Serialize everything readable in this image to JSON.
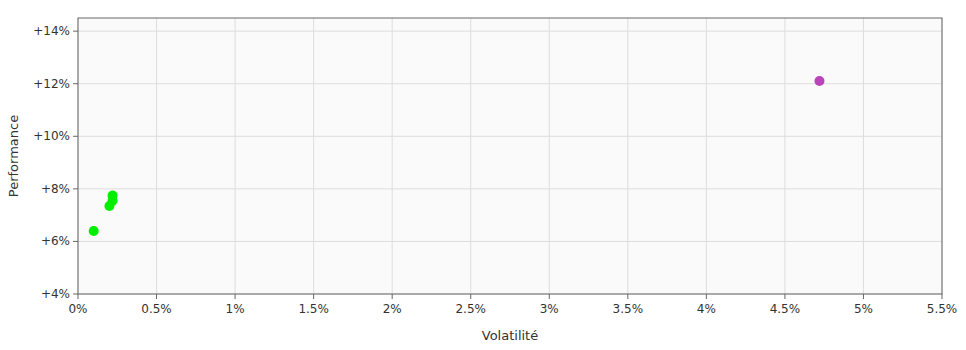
{
  "chart_data": {
    "type": "scatter",
    "xlabel": "Volatilité",
    "ylabel": "Performance",
    "xlim": [
      0,
      0.055
    ],
    "ylim": [
      0.04,
      0.145
    ],
    "xticks": [
      {
        "value": 0.0,
        "label": "0%"
      },
      {
        "value": 0.005,
        "label": "0.5%"
      },
      {
        "value": 0.01,
        "label": "1%"
      },
      {
        "value": 0.015,
        "label": "1.5%"
      },
      {
        "value": 0.02,
        "label": "2%"
      },
      {
        "value": 0.025,
        "label": "2.5%"
      },
      {
        "value": 0.03,
        "label": "3%"
      },
      {
        "value": 0.035,
        "label": "3.5%"
      },
      {
        "value": 0.04,
        "label": "4%"
      },
      {
        "value": 0.045,
        "label": "4.5%"
      },
      {
        "value": 0.05,
        "label": "5%"
      },
      {
        "value": 0.055,
        "label": "5.5%"
      }
    ],
    "yticks": [
      {
        "value": 0.04,
        "label": "+4%"
      },
      {
        "value": 0.06,
        "label": "+6%"
      },
      {
        "value": 0.08,
        "label": "+8%"
      },
      {
        "value": 0.1,
        "label": "+10%"
      },
      {
        "value": 0.12,
        "label": "+12%"
      },
      {
        "value": 0.14,
        "label": "+14%"
      }
    ],
    "grid": true,
    "series": [
      {
        "color": "#00ee00",
        "x": [
          0.0022,
          0.0022,
          0.002,
          0.001
        ],
        "values": [
          0.0775,
          0.0755,
          0.0735,
          0.064
        ]
      },
      {
        "color": "#bb44bb",
        "x": [
          0.0472
        ],
        "values": [
          0.121
        ]
      }
    ]
  }
}
